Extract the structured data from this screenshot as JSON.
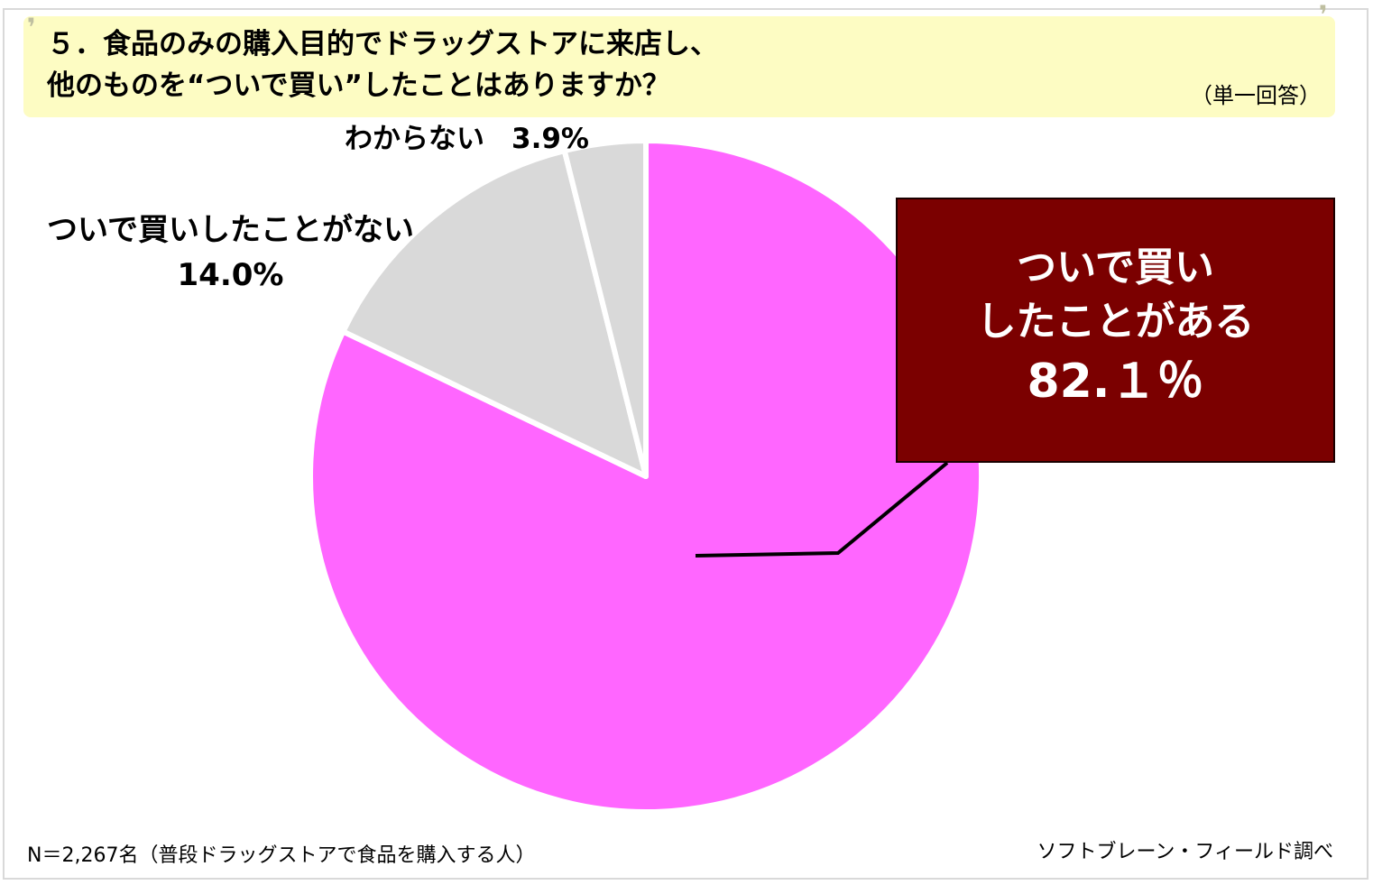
{
  "title": {
    "line1": "５．食品のみの購入目的でドラッグストアに来店し、",
    "line2": "他のものを“ついで買い”したことはありますか？",
    "note": "（単一回答）"
  },
  "chart_data": {
    "type": "pie",
    "start_angle_deg": 0,
    "direction": "clockwise",
    "colors": [
      "#ff66ff",
      "#d9d9d9",
      "#d9d9d9"
    ],
    "slices": [
      {
        "label_line1": "ついで買い",
        "label_line2": "したことがある",
        "value": 82.1,
        "value_label": "82.１％",
        "display": "callout"
      },
      {
        "label": "ついで買いしたことがない",
        "value": 14.0,
        "value_label": "14.0%",
        "display": "outside-left"
      },
      {
        "label": "わからない",
        "value": 3.9,
        "value_label": "3.9%",
        "display": "outside-top"
      }
    ]
  },
  "footer": {
    "sample": "N＝2,267名（普段ドラッグストアで食品を購入する人）",
    "source": "ソフトブレーン・フィールド調べ"
  }
}
